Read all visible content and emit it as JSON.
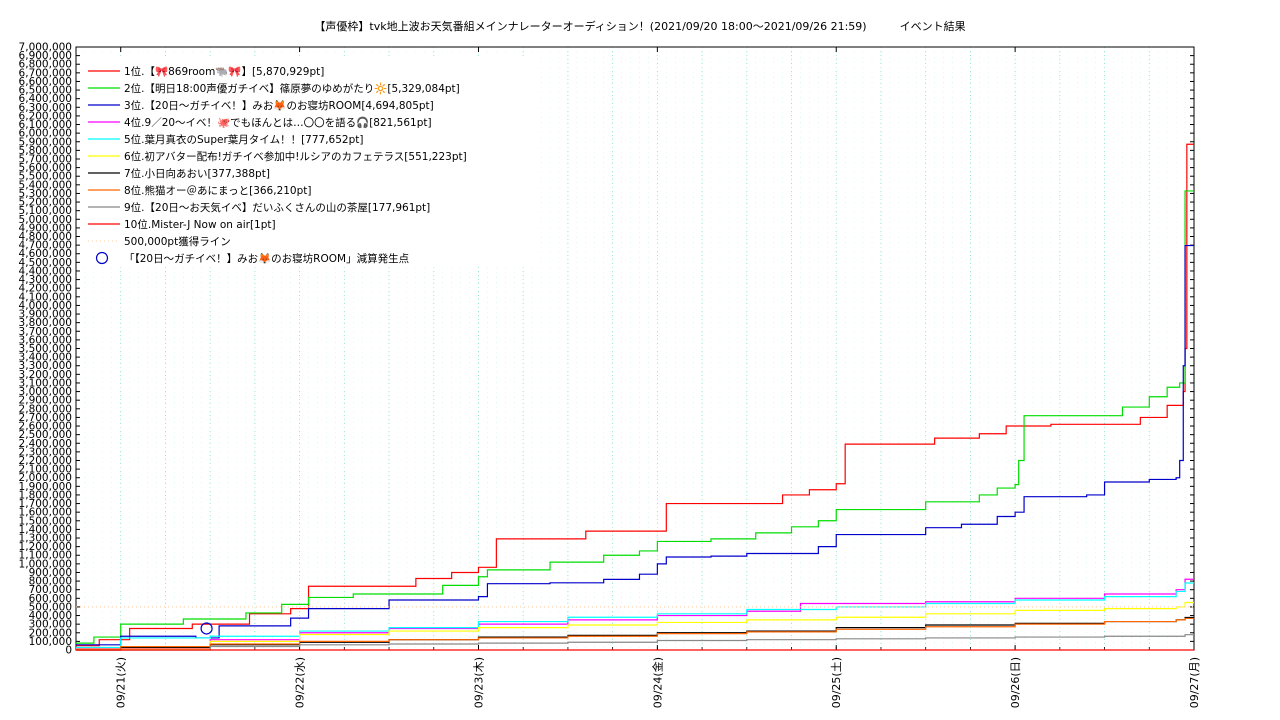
{
  "chart_data": {
    "type": "line",
    "title": "【声優枠】tvk地上波お天気番組メインナレーターオーディション！(2021/09/20 18:00〜2021/09/26 21:59)　　　イベント結果",
    "xlabel": "",
    "ylabel": "",
    "x_ticks": [
      "09/21(火)",
      "09/22(水)",
      "09/23(木)",
      "09/24(金)",
      "09/25(土)",
      "09/26(日)",
      "09/27(月)"
    ],
    "x_range_days": [
      -0.25,
      6.0
    ],
    "ylim": [
      0,
      7000000
    ],
    "y_tick_step": 100000,
    "grid": true,
    "legend_position": "top-left",
    "series": [
      {
        "name": "1位.【🎀869room🐃🎀】[5,870,929pt]",
        "color": "#ff0000",
        "style": "solid",
        "points": [
          [
            -0.25,
            50000
          ],
          [
            -0.12,
            120000
          ],
          [
            0.05,
            250000
          ],
          [
            0.4,
            300000
          ],
          [
            0.72,
            420000
          ],
          [
            0.95,
            480000
          ],
          [
            1.05,
            740000
          ],
          [
            1.5,
            740000
          ],
          [
            1.65,
            830000
          ],
          [
            1.85,
            900000
          ],
          [
            2.0,
            960000
          ],
          [
            2.1,
            1290000
          ],
          [
            2.55,
            1290000
          ],
          [
            2.6,
            1380000
          ],
          [
            3.0,
            1380000
          ],
          [
            3.05,
            1700000
          ],
          [
            3.5,
            1700000
          ],
          [
            3.7,
            1800000
          ],
          [
            3.85,
            1860000
          ],
          [
            4.0,
            1930000
          ],
          [
            4.05,
            2390000
          ],
          [
            4.4,
            2390000
          ],
          [
            4.55,
            2460000
          ],
          [
            4.8,
            2510000
          ],
          [
            4.95,
            2600000
          ],
          [
            5.2,
            2620000
          ],
          [
            5.5,
            2620000
          ],
          [
            5.7,
            2700000
          ],
          [
            5.85,
            2840000
          ],
          [
            5.92,
            2840000
          ],
          [
            5.94,
            3000000
          ],
          [
            5.95,
            3500000
          ],
          [
            5.96,
            5870929
          ],
          [
            6.0,
            5870929
          ]
        ]
      },
      {
        "name": "2位.【明日18:00声優ガチイベ】篠原夢のゆめがたり🔆[5,329,084pt]",
        "color": "#00dd00",
        "style": "solid",
        "points": [
          [
            -0.25,
            80000
          ],
          [
            -0.15,
            150000
          ],
          [
            0.0,
            300000
          ],
          [
            0.35,
            360000
          ],
          [
            0.7,
            430000
          ],
          [
            0.9,
            530000
          ],
          [
            1.05,
            610000
          ],
          [
            1.3,
            650000
          ],
          [
            1.8,
            750000
          ],
          [
            2.0,
            850000
          ],
          [
            2.05,
            930000
          ],
          [
            2.4,
            1020000
          ],
          [
            2.7,
            1100000
          ],
          [
            2.9,
            1150000
          ],
          [
            3.0,
            1260000
          ],
          [
            3.3,
            1290000
          ],
          [
            3.55,
            1360000
          ],
          [
            3.75,
            1430000
          ],
          [
            3.9,
            1500000
          ],
          [
            4.0,
            1630000
          ],
          [
            4.3,
            1630000
          ],
          [
            4.5,
            1720000
          ],
          [
            4.8,
            1800000
          ],
          [
            4.9,
            1880000
          ],
          [
            5.0,
            1920000
          ],
          [
            5.02,
            2200000
          ],
          [
            5.05,
            2720000
          ],
          [
            5.5,
            2720000
          ],
          [
            5.6,
            2820000
          ],
          [
            5.75,
            2940000
          ],
          [
            5.85,
            3050000
          ],
          [
            5.92,
            3100000
          ],
          [
            5.95,
            5329084
          ],
          [
            6.0,
            5329084
          ]
        ]
      },
      {
        "name": "3位.【20日〜ガチイベ！】みお🦊のお寝坊ROOM[4,694,805pt]",
        "color": "#0000cc",
        "style": "solid",
        "points": [
          [
            -0.25,
            60000
          ],
          [
            0.0,
            160000
          ],
          [
            0.4,
            160000
          ],
          [
            0.42,
            140000
          ],
          [
            0.55,
            280000
          ],
          [
            0.9,
            280000
          ],
          [
            0.95,
            370000
          ],
          [
            1.05,
            480000
          ],
          [
            1.5,
            580000
          ],
          [
            2.0,
            620000
          ],
          [
            2.05,
            770000
          ],
          [
            2.4,
            780000
          ],
          [
            2.7,
            820000
          ],
          [
            2.9,
            880000
          ],
          [
            3.0,
            1000000
          ],
          [
            3.05,
            1080000
          ],
          [
            3.3,
            1090000
          ],
          [
            3.5,
            1120000
          ],
          [
            3.9,
            1200000
          ],
          [
            4.0,
            1340000
          ],
          [
            4.4,
            1340000
          ],
          [
            4.5,
            1420000
          ],
          [
            4.7,
            1460000
          ],
          [
            4.9,
            1550000
          ],
          [
            5.0,
            1600000
          ],
          [
            5.05,
            1780000
          ],
          [
            5.4,
            1800000
          ],
          [
            5.5,
            1950000
          ],
          [
            5.75,
            1980000
          ],
          [
            5.9,
            2000000
          ],
          [
            5.92,
            2200000
          ],
          [
            5.94,
            3300000
          ],
          [
            5.95,
            4694805
          ],
          [
            6.0,
            4694805
          ]
        ]
      },
      {
        "name": "4位.9／20〜イベ！🐙でもほんとは…〇〇を語る🎧[821,561pt]",
        "color": "#ff00ff",
        "style": "solid",
        "points": [
          [
            -0.25,
            20000
          ],
          [
            0.5,
            120000
          ],
          [
            1.0,
            200000
          ],
          [
            1.5,
            250000
          ],
          [
            2.0,
            300000
          ],
          [
            2.5,
            350000
          ],
          [
            3.0,
            400000
          ],
          [
            3.5,
            450000
          ],
          [
            3.8,
            540000
          ],
          [
            4.5,
            560000
          ],
          [
            5.0,
            600000
          ],
          [
            5.5,
            650000
          ],
          [
            5.9,
            700000
          ],
          [
            5.95,
            821561
          ],
          [
            6.0,
            821561
          ]
        ]
      },
      {
        "name": "5位.葉月真衣のSuper葉月タイム！！[777,652pt]",
        "color": "#00ffff",
        "style": "solid",
        "points": [
          [
            -0.25,
            30000
          ],
          [
            0.0,
            140000
          ],
          [
            0.3,
            140000
          ],
          [
            0.5,
            160000
          ],
          [
            1.0,
            220000
          ],
          [
            1.5,
            260000
          ],
          [
            2.0,
            330000
          ],
          [
            2.5,
            380000
          ],
          [
            3.0,
            420000
          ],
          [
            3.5,
            470000
          ],
          [
            4.0,
            500000
          ],
          [
            4.5,
            540000
          ],
          [
            5.0,
            580000
          ],
          [
            5.5,
            620000
          ],
          [
            5.9,
            680000
          ],
          [
            5.95,
            777652
          ],
          [
            6.0,
            777652
          ]
        ]
      },
      {
        "name": "6位.初アバター配布!ガチイベ参加中!ルシアのカフェテラス[551,223pt]",
        "color": "#ffff00",
        "style": "solid",
        "points": [
          [
            -0.25,
            10000
          ],
          [
            0.5,
            100000
          ],
          [
            1.0,
            180000
          ],
          [
            1.5,
            220000
          ],
          [
            2.0,
            260000
          ],
          [
            2.5,
            290000
          ],
          [
            3.0,
            320000
          ],
          [
            3.5,
            350000
          ],
          [
            4.0,
            380000
          ],
          [
            4.5,
            420000
          ],
          [
            5.0,
            460000
          ],
          [
            5.5,
            480000
          ],
          [
            5.9,
            500000
          ],
          [
            5.95,
            551223
          ],
          [
            6.0,
            551223
          ]
        ]
      },
      {
        "name": "7位.小日向あおい[377,388pt]",
        "color": "#000000",
        "style": "solid",
        "points": [
          [
            -0.25,
            0
          ],
          [
            0.0,
            30000
          ],
          [
            0.5,
            60000
          ],
          [
            1.0,
            90000
          ],
          [
            1.5,
            120000
          ],
          [
            2.0,
            150000
          ],
          [
            2.5,
            170000
          ],
          [
            3.0,
            200000
          ],
          [
            3.5,
            220000
          ],
          [
            4.0,
            260000
          ],
          [
            4.5,
            290000
          ],
          [
            5.0,
            310000
          ],
          [
            5.5,
            330000
          ],
          [
            5.9,
            350000
          ],
          [
            5.95,
            377388
          ],
          [
            6.0,
            377388
          ]
        ]
      },
      {
        "name": "8位.熊猫オー＠あにまっと[366,210pt]",
        "color": "#ff6600",
        "style": "solid",
        "points": [
          [
            -0.25,
            0
          ],
          [
            0.0,
            40000
          ],
          [
            0.5,
            70000
          ],
          [
            1.0,
            100000
          ],
          [
            1.5,
            120000
          ],
          [
            2.0,
            140000
          ],
          [
            2.5,
            160000
          ],
          [
            3.0,
            190000
          ],
          [
            3.5,
            210000
          ],
          [
            4.0,
            240000
          ],
          [
            4.5,
            270000
          ],
          [
            5.0,
            300000
          ],
          [
            5.5,
            330000
          ],
          [
            5.9,
            350000
          ],
          [
            5.95,
            366210
          ],
          [
            6.0,
            366210
          ]
        ]
      },
      {
        "name": "9位.【20日〜お天気イベ】だいふくさんの山の茶屋[177,961pt]",
        "color": "#888888",
        "style": "solid",
        "points": [
          [
            -0.25,
            0
          ],
          [
            0.5,
            40000
          ],
          [
            1.0,
            60000
          ],
          [
            1.5,
            70000
          ],
          [
            2.0,
            80000
          ],
          [
            2.5,
            90000
          ],
          [
            3.0,
            110000
          ],
          [
            3.5,
            120000
          ],
          [
            4.0,
            130000
          ],
          [
            4.5,
            140000
          ],
          [
            5.0,
            150000
          ],
          [
            5.5,
            160000
          ],
          [
            5.95,
            177961
          ],
          [
            6.0,
            177961
          ]
        ]
      },
      {
        "name": "10位.Mister-J Now on air[1pt]",
        "color": "#ff0000",
        "style": "solid",
        "points": [
          [
            -0.25,
            0
          ],
          [
            6.0,
            1
          ]
        ]
      },
      {
        "name": "500,000pt獲得ライン",
        "color": "#ffcc99",
        "style": "dotted",
        "points": [
          [
            -0.25,
            500000
          ],
          [
            6.0,
            500000
          ]
        ]
      }
    ],
    "annotations": [
      {
        "label": "「【20日〜ガチイベ！】みお🦊のお寝坊ROOM」減算発生点",
        "marker": "circle",
        "x": 0.48,
        "y": 250000,
        "color": "#0000cc"
      }
    ]
  }
}
